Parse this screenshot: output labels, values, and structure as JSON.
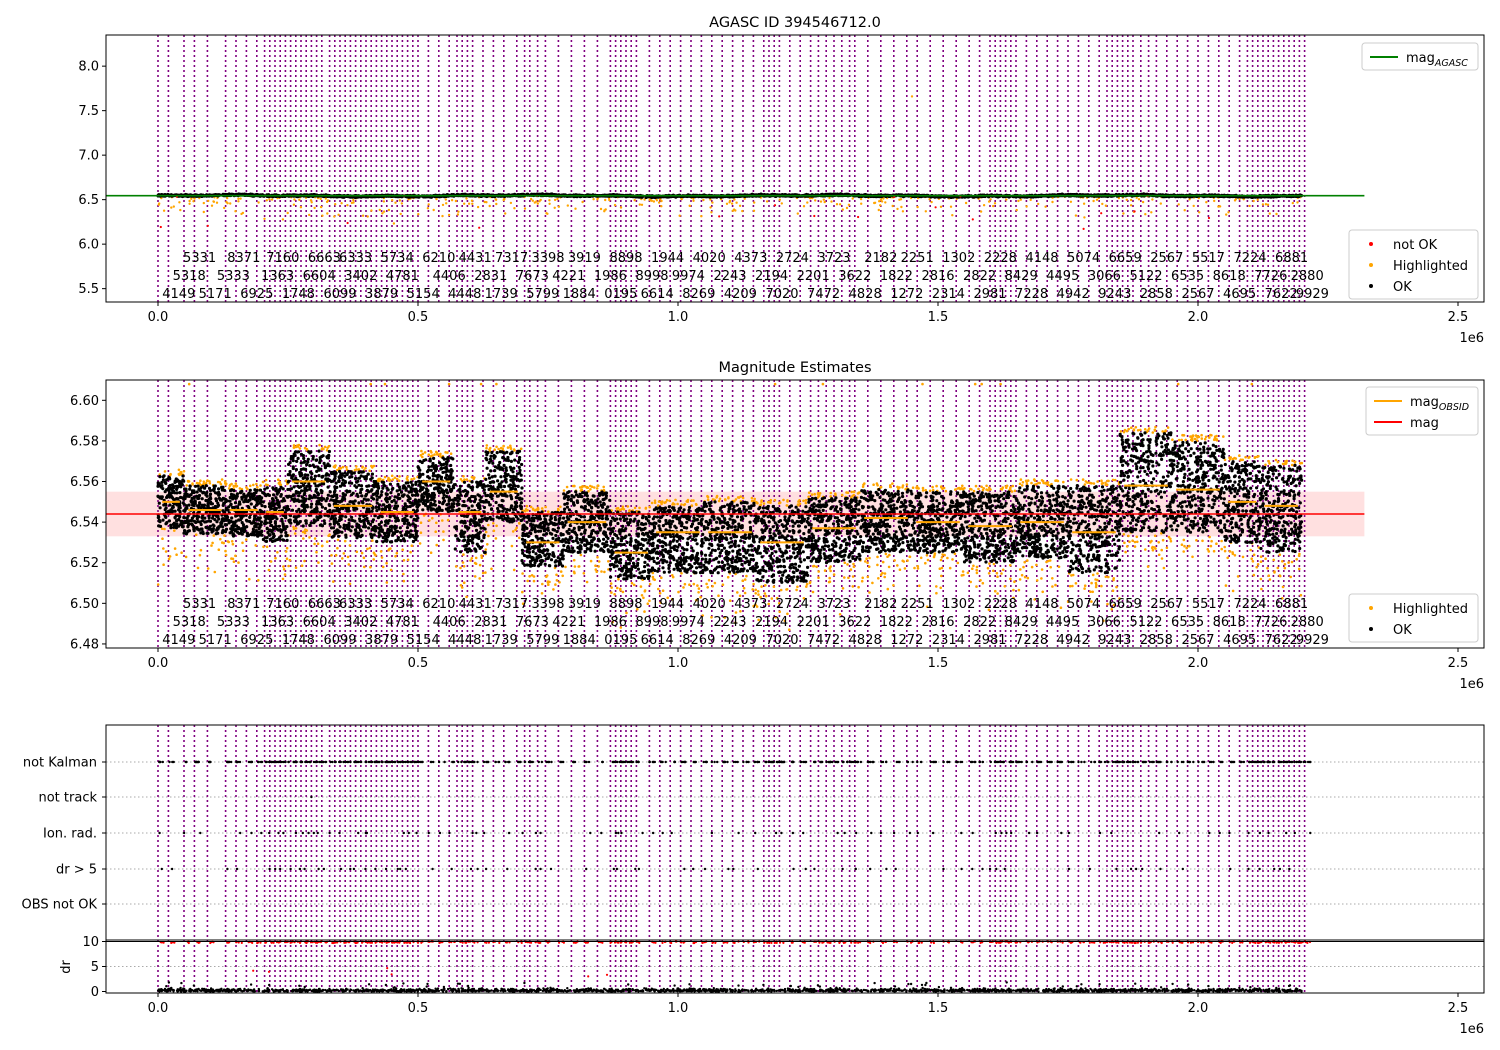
{
  "chart_data": [
    {
      "type": "scatter",
      "title": "AGASC ID 394546712.0",
      "xlim": [
        -100000,
        2550000
      ],
      "ylim": [
        5.35,
        8.35
      ],
      "x_ticks": [
        0,
        500000,
        1000000,
        1500000,
        2000000,
        2500000
      ],
      "x_tick_labels": [
        "0.0",
        "0.5",
        "1.0",
        "1.5",
        "2.0",
        "2.5"
      ],
      "x_offset_label": "1e6",
      "y_ticks": [
        5.5,
        6.0,
        6.5,
        7.0,
        7.5,
        8.0
      ],
      "y_tick_labels": [
        "5.5",
        "6.0",
        "6.5",
        "7.0",
        "7.5",
        "8.0"
      ],
      "hline": {
        "y": 6.544,
        "color": "#008000",
        "label": "mag",
        "label_sub": "AGASC",
        "x_range": [
          -100000,
          2320000
        ]
      },
      "legend_upper": {
        "placement": "top-right",
        "entries": [
          {
            "label": "mag",
            "sub": "AGASC",
            "color": "#008000",
            "kind": "line"
          }
        ]
      },
      "legend_lower": {
        "placement": "bottom-right",
        "entries": [
          {
            "label": "not OK",
            "color": "#ff0000",
            "kind": "dot"
          },
          {
            "label": "Highlighted",
            "color": "#ffa500",
            "kind": "dot"
          },
          {
            "label": "OK",
            "color": "#000000",
            "kind": "dot"
          }
        ]
      },
      "series": [
        {
          "name": "OK",
          "color": "#000000",
          "band_center": 6.55,
          "band_half_width": 0.012
        },
        {
          "name": "Highlighted",
          "color": "#ffa500",
          "band_center": 6.52,
          "band_half_width": 0.06
        },
        {
          "name": "not OK",
          "color": "#ff0000",
          "band_center": 6.5,
          "band_half_width": 0.4
        }
      ]
    },
    {
      "type": "scatter",
      "title": "Magnitude Estimates",
      "xlim": [
        -100000,
        2550000
      ],
      "ylim": [
        6.478,
        6.61
      ],
      "x_ticks": [
        0,
        500000,
        1000000,
        1500000,
        2000000,
        2500000
      ],
      "x_tick_labels": [
        "0.0",
        "0.5",
        "1.0",
        "1.5",
        "2.0",
        "2.5"
      ],
      "x_offset_label": "1e6",
      "y_ticks": [
        6.48,
        6.5,
        6.52,
        6.54,
        6.56,
        6.58,
        6.6
      ],
      "y_tick_labels": [
        "6.48",
        "6.50",
        "6.52",
        "6.54",
        "6.56",
        "6.58",
        "6.60"
      ],
      "hline": {
        "y": 6.544,
        "color": "#ff0000",
        "label": "mag",
        "x_range": [
          -100000,
          2320000
        ]
      },
      "band": {
        "y0": 6.533,
        "y1": 6.555,
        "color": "#ff0000",
        "opacity": 0.12
      },
      "legend_upper": {
        "placement": "top-right",
        "entries": [
          {
            "label": "mag",
            "sub": "OBSID",
            "color": "#ffa500",
            "kind": "line"
          },
          {
            "label": "mag",
            "color": "#ff0000",
            "kind": "line"
          }
        ]
      },
      "legend_lower": {
        "placement": "bottom-right",
        "entries": [
          {
            "label": "Highlighted",
            "color": "#ffa500",
            "kind": "dot"
          },
          {
            "label": "OK",
            "color": "#000000",
            "kind": "dot"
          }
        ]
      },
      "obsid_segments": [
        {
          "x0": 0,
          "x1": 50000,
          "mag": 6.55,
          "lo": 6.537,
          "hi": 6.563
        },
        {
          "x0": 50000,
          "x1": 130000,
          "mag": 6.546,
          "lo": 6.534,
          "hi": 6.558
        },
        {
          "x0": 130000,
          "x1": 200000,
          "mag": 6.546,
          "lo": 6.533,
          "hi": 6.556
        },
        {
          "x0": 200000,
          "x1": 250000,
          "mag": 6.545,
          "lo": 6.53,
          "hi": 6.558
        },
        {
          "x0": 250000,
          "x1": 330000,
          "mag": 6.56,
          "lo": 6.538,
          "hi": 6.575
        },
        {
          "x0": 330000,
          "x1": 420000,
          "mag": 6.548,
          "lo": 6.532,
          "hi": 6.565
        },
        {
          "x0": 420000,
          "x1": 500000,
          "mag": 6.545,
          "lo": 6.53,
          "hi": 6.56
        },
        {
          "x0": 500000,
          "x1": 570000,
          "mag": 6.56,
          "lo": 6.545,
          "hi": 6.572
        },
        {
          "x0": 570000,
          "x1": 630000,
          "mag": 6.545,
          "lo": 6.525,
          "hi": 6.56
        },
        {
          "x0": 630000,
          "x1": 700000,
          "mag": 6.555,
          "lo": 6.54,
          "hi": 6.575
        },
        {
          "x0": 700000,
          "x1": 780000,
          "mag": 6.53,
          "lo": 6.518,
          "hi": 6.545
        },
        {
          "x0": 780000,
          "x1": 870000,
          "mag": 6.54,
          "lo": 6.525,
          "hi": 6.555
        },
        {
          "x0": 870000,
          "x1": 950000,
          "mag": 6.525,
          "lo": 6.512,
          "hi": 6.545
        },
        {
          "x0": 950000,
          "x1": 1050000,
          "mag": 6.535,
          "lo": 6.515,
          "hi": 6.548
        },
        {
          "x0": 1050000,
          "x1": 1150000,
          "mag": 6.535,
          "lo": 6.515,
          "hi": 6.55
        },
        {
          "x0": 1150000,
          "x1": 1250000,
          "mag": 6.53,
          "lo": 6.51,
          "hi": 6.548
        },
        {
          "x0": 1250000,
          "x1": 1350000,
          "mag": 6.537,
          "lo": 6.52,
          "hi": 6.552
        },
        {
          "x0": 1350000,
          "x1": 1450000,
          "mag": 6.542,
          "lo": 6.525,
          "hi": 6.556
        },
        {
          "x0": 1450000,
          "x1": 1550000,
          "mag": 6.54,
          "lo": 6.525,
          "hi": 6.555
        },
        {
          "x0": 1550000,
          "x1": 1650000,
          "mag": 6.538,
          "lo": 6.52,
          "hi": 6.555
        },
        {
          "x0": 1650000,
          "x1": 1750000,
          "mag": 6.54,
          "lo": 6.522,
          "hi": 6.558
        },
        {
          "x0": 1750000,
          "x1": 1850000,
          "mag": 6.535,
          "lo": 6.515,
          "hi": 6.558
        },
        {
          "x0": 1850000,
          "x1": 1950000,
          "mag": 6.558,
          "lo": 6.535,
          "hi": 6.584
        },
        {
          "x0": 1950000,
          "x1": 2050000,
          "mag": 6.556,
          "lo": 6.535,
          "hi": 6.58
        },
        {
          "x0": 2050000,
          "x1": 2120000,
          "mag": 6.55,
          "lo": 6.53,
          "hi": 6.57
        },
        {
          "x0": 2120000,
          "x1": 2200000,
          "mag": 6.548,
          "lo": 6.525,
          "hi": 6.568
        }
      ]
    },
    {
      "type": "scatter",
      "title": "",
      "xlim": [
        -100000,
        2550000
      ],
      "x_ticks": [
        0,
        500000,
        1000000,
        1500000,
        2000000,
        2500000
      ],
      "x_tick_labels": [
        "0.0",
        "0.5",
        "1.0",
        "1.5",
        "2.0",
        "2.5"
      ],
      "x_offset_label": "1e6",
      "flag_categories": [
        "not Kalman",
        "not track",
        "Ion. rad.",
        "dr > 5",
        "OBS not OK"
      ],
      "dr_panel": {
        "ylabel": "dr",
        "ylim": [
          -0.3,
          10.3
        ],
        "y_ticks": [
          0,
          5,
          10
        ],
        "y_tick_labels": [
          "0",
          "5",
          "10"
        ]
      }
    }
  ],
  "obs_start_times": [
    0,
    20000,
    50000,
    70000,
    95000,
    130000,
    150000,
    170000,
    190000,
    205000,
    215000,
    225000,
    235000,
    245000,
    255000,
    265000,
    275000,
    285000,
    295000,
    305000,
    315000,
    330000,
    340000,
    350000,
    360000,
    370000,
    380000,
    390000,
    400000,
    410000,
    420000,
    430000,
    440000,
    450000,
    460000,
    470000,
    480000,
    490000,
    500000,
    520000,
    540000,
    560000,
    575000,
    585000,
    595000,
    605000,
    625000,
    645000,
    665000,
    690000,
    705000,
    715000,
    730000,
    745000,
    770000,
    795000,
    820000,
    845000,
    870000,
    880000,
    890000,
    900000,
    910000,
    920000,
    945000,
    965000,
    985000,
    1005000,
    1025000,
    1045000,
    1065000,
    1085000,
    1105000,
    1125000,
    1145000,
    1165000,
    1175000,
    1185000,
    1195000,
    1215000,
    1235000,
    1255000,
    1270000,
    1285000,
    1300000,
    1315000,
    1330000,
    1340000,
    1365000,
    1390000,
    1415000,
    1440000,
    1460000,
    1485000,
    1510000,
    1535000,
    1560000,
    1580000,
    1600000,
    1610000,
    1620000,
    1630000,
    1640000,
    1650000,
    1670000,
    1690000,
    1710000,
    1730000,
    1750000,
    1770000,
    1790000,
    1810000,
    1825000,
    1835000,
    1845000,
    1855000,
    1865000,
    1875000,
    1890000,
    1905000,
    1920000,
    1940000,
    1960000,
    1980000,
    2000000,
    2020000,
    2040000,
    2060000,
    2080000,
    2095000,
    2105000,
    2115000,
    2125000,
    2135000,
    2145000,
    2155000,
    2165000,
    2175000,
    2185000,
    2195000,
    2205000
  ],
  "obsid_label_rows": [
    [
      {
        "x": 80000,
        "text": "5331"
      },
      {
        "x": 165000,
        "text": "8371"
      },
      {
        "x": 240000,
        "text": "7160"
      },
      {
        "x": 320000,
        "text": "6663"
      },
      {
        "x": 380000,
        "text": "6333"
      },
      {
        "x": 460000,
        "text": "5734"
      },
      {
        "x": 540000,
        "text": "6210"
      },
      {
        "x": 610000,
        "text": "4431"
      },
      {
        "x": 680000,
        "text": "7317"
      },
      {
        "x": 750000,
        "text": "3398"
      },
      {
        "x": 820000,
        "text": "3919"
      },
      {
        "x": 900000,
        "text": "8898"
      },
      {
        "x": 980000,
        "text": "1944"
      },
      {
        "x": 1060000,
        "text": "4020"
      },
      {
        "x": 1140000,
        "text": "4373"
      },
      {
        "x": 1220000,
        "text": "2724"
      },
      {
        "x": 1300000,
        "text": "3723"
      },
      {
        "x": 1390000,
        "text": "2182"
      },
      {
        "x": 1460000,
        "text": "2251"
      },
      {
        "x": 1540000,
        "text": "1302"
      },
      {
        "x": 1620000,
        "text": "2228"
      },
      {
        "x": 1700000,
        "text": "4148"
      },
      {
        "x": 1780000,
        "text": "5074"
      },
      {
        "x": 1860000,
        "text": "6659"
      },
      {
        "x": 1940000,
        "text": "2567"
      },
      {
        "x": 2020000,
        "text": "5517"
      },
      {
        "x": 2100000,
        "text": "7224"
      },
      {
        "x": 2180000,
        "text": "6881"
      }
    ],
    [
      {
        "x": 60000,
        "text": "5318"
      },
      {
        "x": 145000,
        "text": "5333"
      },
      {
        "x": 230000,
        "text": "1363"
      },
      {
        "x": 310000,
        "text": "6604"
      },
      {
        "x": 390000,
        "text": "3402"
      },
      {
        "x": 470000,
        "text": "4781"
      },
      {
        "x": 560000,
        "text": "4406"
      },
      {
        "x": 640000,
        "text": "2831"
      },
      {
        "x": 720000,
        "text": "7673"
      },
      {
        "x": 790000,
        "text": "4221"
      },
      {
        "x": 870000,
        "text": "1986"
      },
      {
        "x": 950000,
        "text": "8998"
      },
      {
        "x": 1020000,
        "text": "9974"
      },
      {
        "x": 1100000,
        "text": "2243"
      },
      {
        "x": 1180000,
        "text": "2194"
      },
      {
        "x": 1260000,
        "text": "2201"
      },
      {
        "x": 1340000,
        "text": "3622"
      },
      {
        "x": 1420000,
        "text": "1822"
      },
      {
        "x": 1500000,
        "text": "2816"
      },
      {
        "x": 1580000,
        "text": "2822"
      },
      {
        "x": 1660000,
        "text": "8429"
      },
      {
        "x": 1740000,
        "text": "4495"
      },
      {
        "x": 1820000,
        "text": "3066"
      },
      {
        "x": 1900000,
        "text": "5122"
      },
      {
        "x": 1980000,
        "text": "6535"
      },
      {
        "x": 2060000,
        "text": "8618"
      },
      {
        "x": 2140000,
        "text": "7726"
      },
      {
        "x": 2210000,
        "text": "2880"
      }
    ],
    [
      {
        "x": 40000,
        "text": "4149"
      },
      {
        "x": 110000,
        "text": "5171"
      },
      {
        "x": 190000,
        "text": "6925"
      },
      {
        "x": 270000,
        "text": "1748"
      },
      {
        "x": 350000,
        "text": "6099"
      },
      {
        "x": 430000,
        "text": "3879"
      },
      {
        "x": 510000,
        "text": "5154"
      },
      {
        "x": 590000,
        "text": "4448"
      },
      {
        "x": 660000,
        "text": "1739"
      },
      {
        "x": 740000,
        "text": "5799"
      },
      {
        "x": 810000,
        "text": "1884"
      },
      {
        "x": 890000,
        "text": "0195"
      },
      {
        "x": 960000,
        "text": "6614"
      },
      {
        "x": 1040000,
        "text": "8269"
      },
      {
        "x": 1120000,
        "text": "4209"
      },
      {
        "x": 1200000,
        "text": "7020"
      },
      {
        "x": 1280000,
        "text": "7472"
      },
      {
        "x": 1360000,
        "text": "4828"
      },
      {
        "x": 1440000,
        "text": "1272"
      },
      {
        "x": 1520000,
        "text": "2314"
      },
      {
        "x": 1600000,
        "text": "2981"
      },
      {
        "x": 1680000,
        "text": "7228"
      },
      {
        "x": 1760000,
        "text": "4942"
      },
      {
        "x": 1840000,
        "text": "9243"
      },
      {
        "x": 1920000,
        "text": "2858"
      },
      {
        "x": 2000000,
        "text": "2567"
      },
      {
        "x": 2080000,
        "text": "4695"
      },
      {
        "x": 2160000,
        "text": "7622"
      },
      {
        "x": 2220000,
        "text": "9929"
      }
    ]
  ]
}
